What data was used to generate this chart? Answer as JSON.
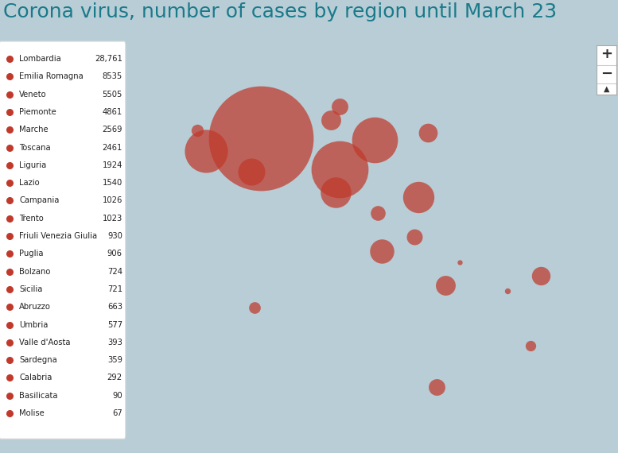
{
  "title": "Corona virus, number of cases by region until March 23",
  "title_color": "#1a7a8a",
  "title_fontsize": 18,
  "background_color": "#b8cdd6",
  "ocean_color": "#b8cdd6",
  "land_color": "#e8e8e8",
  "border_color": "#cccccc",
  "coast_color": "#aaaaaa",
  "region_border_color": "#cc9999",
  "bubble_color": "#c0392b",
  "bubble_alpha": 0.72,
  "regions": [
    {
      "name": "Lombardia",
      "cases": 28761,
      "lat": 45.47,
      "lon": 9.19
    },
    {
      "name": "Emilia Romagna",
      "cases": 8535,
      "lat": 44.49,
      "lon": 11.34
    },
    {
      "name": "Veneto",
      "cases": 5505,
      "lat": 45.44,
      "lon": 12.32
    },
    {
      "name": "Piemonte",
      "cases": 4861,
      "lat": 45.07,
      "lon": 7.68
    },
    {
      "name": "Marche",
      "cases": 2569,
      "lat": 43.62,
      "lon": 13.51
    },
    {
      "name": "Toscana",
      "cases": 2461,
      "lat": 43.77,
      "lon": 11.25
    },
    {
      "name": "Liguria",
      "cases": 1924,
      "lat": 44.41,
      "lon": 8.93
    },
    {
      "name": "Lazio",
      "cases": 1540,
      "lat": 41.9,
      "lon": 12.5
    },
    {
      "name": "Campania",
      "cases": 1026,
      "lat": 40.83,
      "lon": 14.25
    },
    {
      "name": "Trento",
      "cases": 1023,
      "lat": 46.07,
      "lon": 11.12
    },
    {
      "name": "Friuli Venezia Giulia",
      "cases": 930,
      "lat": 45.65,
      "lon": 13.78
    },
    {
      "name": "Puglia",
      "cases": 906,
      "lat": 41.12,
      "lon": 16.87
    },
    {
      "name": "Bolzano",
      "cases": 724,
      "lat": 46.5,
      "lon": 11.35
    },
    {
      "name": "Sicilia",
      "cases": 721,
      "lat": 37.6,
      "lon": 14.01
    },
    {
      "name": "Abruzzo",
      "cases": 663,
      "lat": 42.35,
      "lon": 13.4
    },
    {
      "name": "Umbria",
      "cases": 577,
      "lat": 43.11,
      "lon": 12.39
    },
    {
      "name": "Valle d'Aosta",
      "cases": 393,
      "lat": 45.74,
      "lon": 7.43
    },
    {
      "name": "Sardegna",
      "cases": 359,
      "lat": 40.12,
      "lon": 9.01
    },
    {
      "name": "Calabria",
      "cases": 292,
      "lat": 38.9,
      "lon": 16.6
    },
    {
      "name": "Basilicata",
      "cases": 90,
      "lat": 40.64,
      "lon": 15.97
    },
    {
      "name": "Molise",
      "cases": 67,
      "lat": 41.56,
      "lon": 14.66
    }
  ],
  "legend_dot_color": "#c0392b",
  "legend_bg": "#ffffff",
  "map_extent": [
    5.5,
    19.0,
    35.5,
    48.5
  ],
  "bubble_scale": 18000,
  "legend_cases_format_comma": false
}
